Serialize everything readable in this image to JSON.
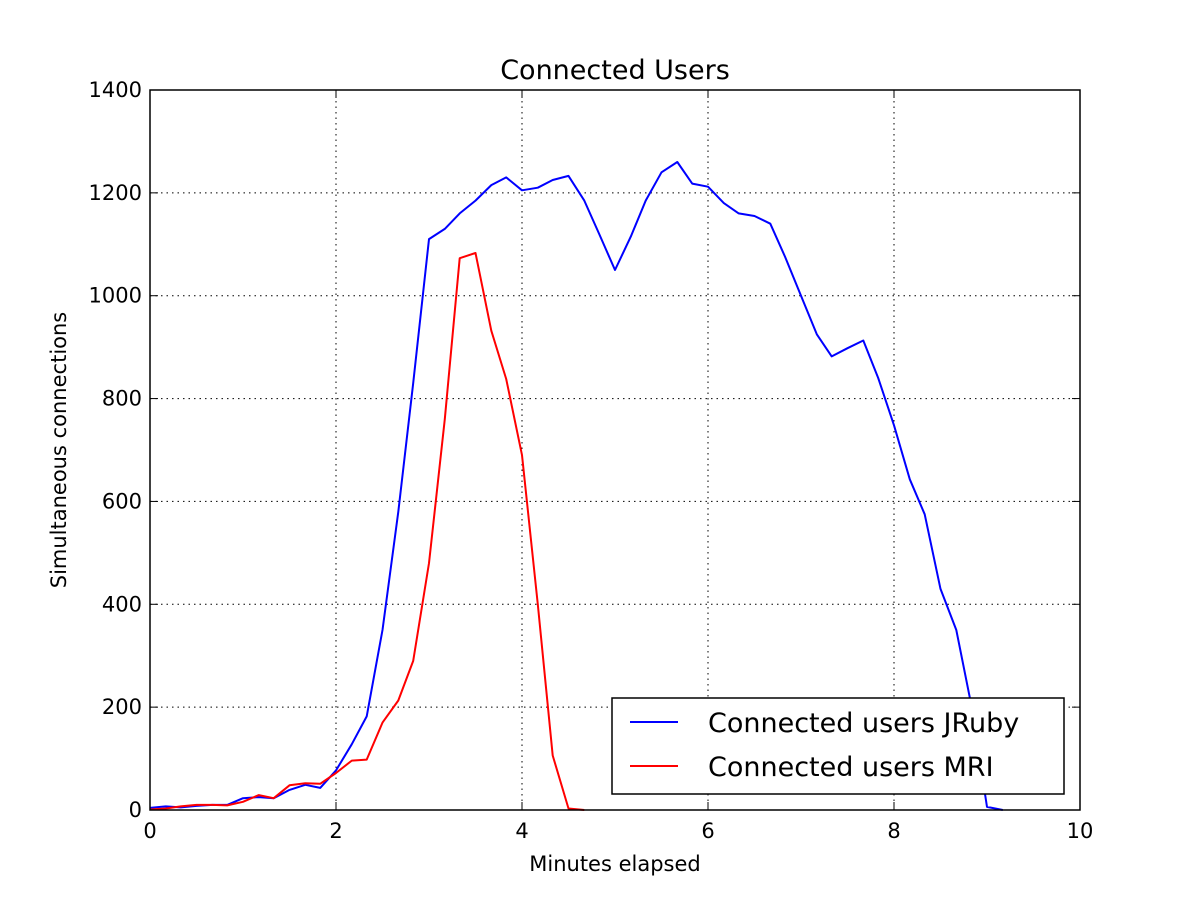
{
  "chart_data": {
    "type": "line",
    "title": "Connected Users",
    "xlabel": "Minutes elapsed",
    "ylabel": "Simultaneous connections",
    "xlim": [
      0,
      10
    ],
    "ylim": [
      0,
      1400
    ],
    "xticks": [
      0,
      2,
      4,
      6,
      8,
      10
    ],
    "yticks": [
      0,
      200,
      400,
      600,
      800,
      1000,
      1200,
      1400
    ],
    "grid": true,
    "legend_position": "lower-right",
    "series": [
      {
        "name": "Connected users JRuby",
        "color": "#0000ff",
        "x": [
          0,
          0.17,
          0.33,
          0.5,
          0.67,
          0.83,
          1.0,
          1.17,
          1.33,
          1.5,
          1.67,
          1.83,
          2.0,
          2.17,
          2.33,
          2.5,
          2.67,
          2.83,
          3.0,
          3.17,
          3.33,
          3.5,
          3.67,
          3.83,
          4.0,
          4.17,
          4.33,
          4.5,
          4.67,
          4.83,
          5.0,
          5.17,
          5.33,
          5.5,
          5.67,
          5.83,
          6.0,
          6.17,
          6.33,
          6.5,
          6.67,
          6.83,
          7.0,
          7.17,
          7.33,
          7.5,
          7.67,
          7.83,
          8.0,
          8.17,
          8.33,
          8.5,
          8.67,
          8.83,
          9.0,
          9.17
        ],
        "y": [
          4,
          7,
          5,
          8,
          10,
          10,
          23,
          25,
          23,
          39,
          49,
          43,
          77,
          128,
          182,
          350,
          580,
          830,
          1110,
          1130,
          1160,
          1185,
          1215,
          1230,
          1205,
          1210,
          1225,
          1233,
          1185,
          1120,
          1050,
          1115,
          1185,
          1240,
          1260,
          1218,
          1212,
          1180,
          1160,
          1155,
          1140,
          1075,
          1000,
          925,
          882,
          898,
          913,
          840,
          748,
          643,
          575,
          430,
          350,
          205,
          6,
          0
        ]
      },
      {
        "name": "Connected users MRI",
        "color": "#ff0000",
        "x": [
          0,
          0.17,
          0.33,
          0.5,
          0.67,
          0.83,
          1.0,
          1.17,
          1.33,
          1.5,
          1.67,
          1.83,
          2.0,
          2.17,
          2.33,
          2.5,
          2.67,
          2.83,
          3.0,
          3.17,
          3.33,
          3.5,
          3.67,
          3.83,
          4.0,
          4.17,
          4.33,
          4.5,
          4.67
        ],
        "y": [
          1,
          3,
          7,
          10,
          10,
          9,
          16,
          29,
          23,
          48,
          52,
          51,
          72,
          96,
          98,
          170,
          213,
          290,
          480,
          760,
          1073,
          1083,
          932,
          838,
          690,
          400,
          106,
          3,
          0
        ]
      }
    ]
  }
}
